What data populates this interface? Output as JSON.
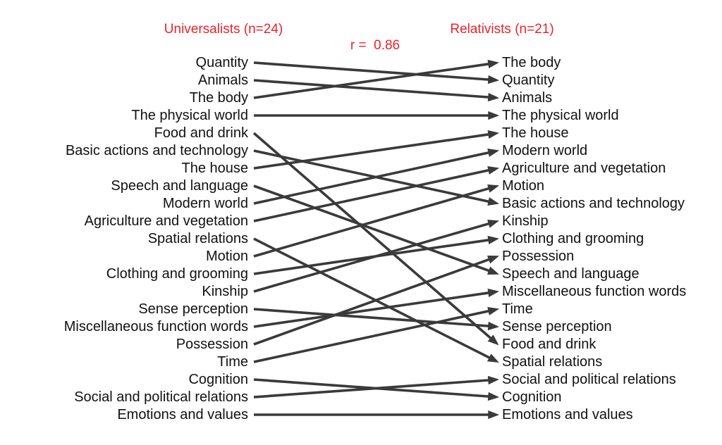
{
  "chart_data": {
    "type": "slopegraph",
    "left_header": "Universalists (n=24)",
    "right_header": "Relativists (n=21)",
    "annotation": "r =  0.86",
    "left_ranking": [
      "Quantity",
      "Animals",
      "The body",
      "The physical world",
      "Food and drink",
      "Basic actions and technology",
      "The house",
      "Speech and language",
      "Modern world",
      "Agriculture and vegetation",
      "Spatial relations",
      "Motion",
      "Clothing and grooming",
      "Kinship",
      "Sense perception",
      "Miscellaneous function words",
      "Possession",
      "Time",
      "Cognition",
      "Social and political relations",
      "Emotions and values"
    ],
    "right_ranking": [
      "The body",
      "Quantity",
      "Animals",
      "The physical world",
      "The house",
      "Modern world",
      "Agriculture and vegetation",
      "Motion",
      "Basic actions and technology",
      "Kinship",
      "Clothing and grooming",
      "Possession",
      "Speech and language",
      "Miscellaneous function words",
      "Time",
      "Sense perception",
      "Food and drink",
      "Spatial relations",
      "Social and political relations",
      "Cognition",
      "Emotions and values"
    ],
    "colors": {
      "headers": "#e8242a",
      "arrows": "#3a3a3a",
      "text": "#111111"
    }
  }
}
